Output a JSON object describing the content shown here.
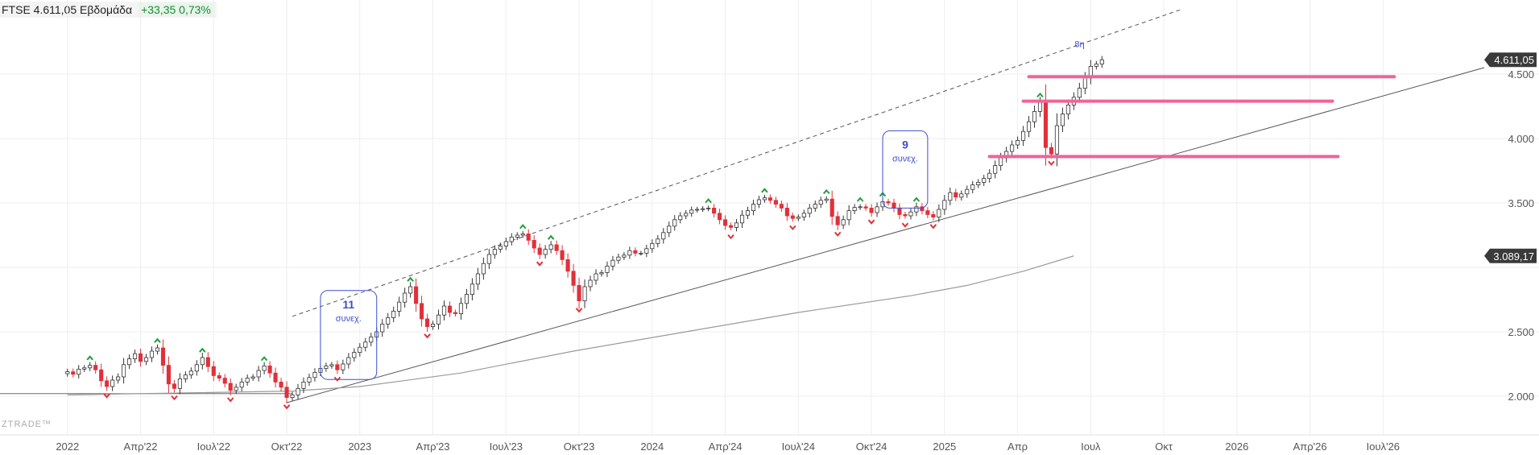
{
  "header": {
    "symbol": "FTSE",
    "last": "4.611,05",
    "interval": "Εβδομάδα",
    "change": "+33,35 0,73%"
  },
  "colors": {
    "up_candle_fill": "#ffffff",
    "down_candle_fill": "#e0313a",
    "candle_outline": "#333333",
    "support_line": "#555555",
    "moving_average": "#9a9a9a",
    "resistance_levels": "#f06496",
    "count_box": "#3d4fd0",
    "up_marker": "#1f9e3a",
    "down_marker": "#e0313a",
    "price_tag": "#3a3a3a"
  },
  "chart_data": {
    "type": "candlestick",
    "xaxis_ticks": [
      "2022",
      "Απρ'22",
      "Ιουλ'22",
      "Οκτ'22",
      "2023",
      "Απρ'23",
      "Ιουλ'23",
      "Οκτ'23",
      "2024",
      "Απρ'24",
      "Ιουλ'24",
      "Οκτ'24",
      "2025",
      "Απρ",
      "Ιουλ",
      "Οκτ",
      "2026",
      "Απρ'26",
      "Ιουλ'26"
    ],
    "xaxis_tick_index": [
      0,
      13,
      26,
      39,
      52,
      65,
      78,
      91,
      104,
      117,
      130,
      143,
      156,
      169,
      182,
      195,
      208,
      221,
      234
    ],
    "yaxis_ticks": [
      2000,
      2500,
      3000,
      3500,
      4000,
      4500
    ],
    "yaxis_tick_labels": [
      "2.000",
      "2.500",
      "",
      "3.500",
      "4.000",
      "4.500"
    ],
    "ylim": [
      1700,
      4900
    ],
    "x_index_range": [
      -12,
      253
    ],
    "grid": true,
    "close": [
      2190,
      2170,
      2210,
      2220,
      2240,
      2205,
      2120,
      2075,
      2125,
      2150,
      2245,
      2290,
      2330,
      2270,
      2300,
      2350,
      2375,
      2240,
      2095,
      2060,
      2135,
      2165,
      2195,
      2245,
      2300,
      2230,
      2160,
      2140,
      2100,
      2045,
      2070,
      2110,
      2140,
      2150,
      2200,
      2235,
      2180,
      2110,
      2070,
      1990,
      2010,
      2060,
      2110,
      2145,
      2185,
      2215,
      2235,
      2245,
      2205,
      2250,
      2300,
      2340,
      2380,
      2420,
      2460,
      2500,
      2560,
      2610,
      2660,
      2730,
      2800,
      2850,
      2720,
      2600,
      2540,
      2560,
      2630,
      2700,
      2650,
      2640,
      2720,
      2790,
      2870,
      2950,
      3030,
      3100,
      3140,
      3165,
      3200,
      3235,
      3250,
      3260,
      3210,
      3150,
      3100,
      3140,
      3175,
      3130,
      3060,
      2970,
      2860,
      2740,
      2850,
      2900,
      2950,
      2960,
      3010,
      3055,
      3080,
      3095,
      3130,
      3110,
      3110,
      3145,
      3185,
      3220,
      3270,
      3320,
      3370,
      3400,
      3420,
      3445,
      3450,
      3455,
      3460,
      3420,
      3370,
      3325,
      3310,
      3345,
      3405,
      3440,
      3490,
      3525,
      3540,
      3520,
      3490,
      3460,
      3400,
      3380,
      3390,
      3420,
      3460,
      3490,
      3520,
      3530,
      3395,
      3330,
      3370,
      3440,
      3465,
      3470,
      3460,
      3425,
      3470,
      3510,
      3500,
      3460,
      3410,
      3400,
      3430,
      3470,
      3440,
      3410,
      3390,
      3450,
      3520,
      3580,
      3545,
      3570,
      3605,
      3640,
      3660,
      3690,
      3730,
      3790,
      3850,
      3900,
      3950,
      3985,
      4055,
      4130,
      4210,
      4280,
      3930,
      3880,
      4100,
      4190,
      4260,
      4320,
      4390,
      4470,
      4560,
      4578,
      4611
    ],
    "moving_average": {
      "points_index": [
        0,
        40,
        52,
        70,
        90,
        110,
        130,
        150,
        160,
        170,
        179
      ],
      "points_value": [
        2010,
        2040,
        2075,
        2180,
        2350,
        2500,
        2650,
        2780,
        2860,
        2970,
        3089
      ],
      "last_label": "3.089,17"
    },
    "trendlines": [
      {
        "style": "solid",
        "from": [
          39,
          1950
        ],
        "to": [
          252,
          4550
        ]
      },
      {
        "style": "dashed",
        "from": [
          40,
          2620
        ],
        "to": [
          198,
          5000
        ]
      },
      {
        "style": "solid-thin",
        "from": [
          -12,
          2020
        ],
        "to": [
          40,
          2020
        ]
      }
    ],
    "resistance_levels": [
      {
        "value": 4480,
        "from_index": 171,
        "to_index": 236
      },
      {
        "value": 4290,
        "from_index": 170,
        "to_index": 225
      },
      {
        "value": 3860,
        "from_index": 164,
        "to_index": 226
      }
    ],
    "count_boxes": [
      {
        "count": "11",
        "label": "συνεχ.",
        "index_range": [
          45,
          55
        ],
        "value_range": [
          2130,
          2820
        ]
      },
      {
        "count": "9",
        "label": "συνεχ.",
        "index_range": [
          145,
          153
        ],
        "value_range": [
          3460,
          4060
        ]
      }
    ],
    "annotations": [
      {
        "text": "8η",
        "index": 178,
        "value": 4710
      }
    ],
    "last_price_label": "4.611,05",
    "watermark": "ZTRADE™"
  }
}
